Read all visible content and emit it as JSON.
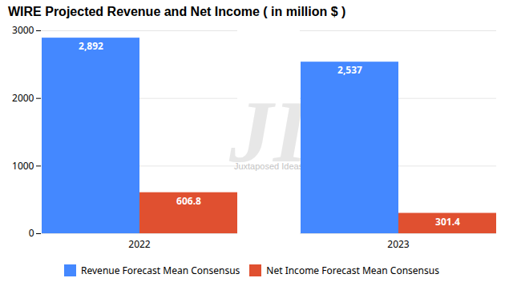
{
  "chart_data": {
    "type": "bar",
    "title": "WIRE Projected Revenue and Net Income ( in million $ )",
    "categories": [
      "2022",
      "2023"
    ],
    "series": [
      {
        "name": "Revenue Forecast Mean Consensus",
        "color": "#4488FF",
        "values": [
          2892,
          2537
        ],
        "value_labels": [
          "2,892",
          "2,537"
        ]
      },
      {
        "name": "Net Income Forecast Mean Consensus",
        "color": "#E05030",
        "values": [
          606.8,
          301.4
        ],
        "value_labels": [
          "606.8",
          "301.4"
        ]
      }
    ],
    "ylim": [
      0,
      3000
    ],
    "yticks": [
      0,
      1000,
      2000,
      3000
    ],
    "grid": true,
    "legend": "bottom",
    "data_labels": true,
    "annotations": [
      "JI",
      "Juxtaposed Ideas"
    ]
  }
}
